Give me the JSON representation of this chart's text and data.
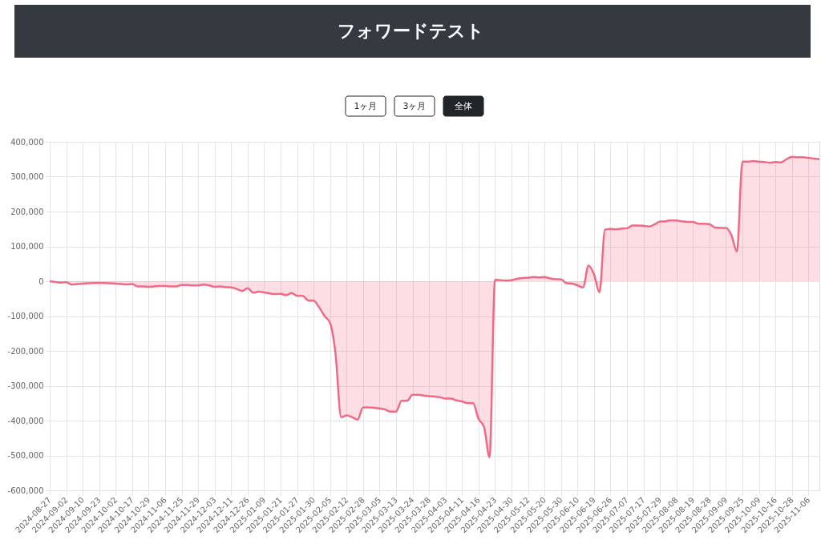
{
  "chart_data": {
    "type": "area",
    "title": "フォワードテスト",
    "annotations": [
      "1ヶ月",
      "3ヶ月",
      "全体"
    ],
    "categories": [
      "2024-08-27",
      null,
      null,
      "2024-09-02",
      null,
      null,
      "2024-09-10",
      null,
      null,
      "2024-09-23",
      null,
      null,
      "2024-10-02",
      null,
      null,
      "2024-10-17",
      null,
      null,
      "2024-10-29",
      null,
      null,
      "2024-11-06",
      null,
      null,
      "2024-11-25",
      null,
      null,
      "2024-11-29",
      null,
      null,
      "2024-12-03",
      null,
      null,
      "2024-12-11",
      null,
      null,
      "2024-12-26",
      null,
      null,
      "2025-01-09",
      null,
      null,
      "2025-01-21",
      null,
      null,
      "2025-01-27",
      null,
      null,
      "2025-01-30",
      null,
      null,
      "2025-02-05",
      null,
      null,
      "2025-02-12",
      null,
      null,
      "2025-02-28",
      null,
      null,
      "2025-03-05",
      null,
      null,
      "2025-03-13",
      null,
      null,
      "2025-03-24",
      null,
      null,
      "2025-03-28",
      null,
      null,
      "2025-04-03",
      null,
      null,
      "2025-04-11",
      null,
      null,
      "2025-04-16",
      null,
      null,
      "2025-04-23",
      null,
      null,
      "2025-04-30",
      null,
      null,
      "2025-05-12",
      null,
      null,
      "2025-05-20",
      null,
      null,
      "2025-05-30",
      null,
      null,
      "2025-06-10",
      null,
      null,
      "2025-06-19",
      null,
      null,
      "2025-06-26",
      null,
      null,
      "2025-07-07",
      null,
      null,
      "2025-07-17",
      null,
      null,
      "2025-07-29",
      null,
      null,
      "2025-08-08",
      null,
      null,
      "2025-08-19",
      null,
      null,
      "2025-08-28",
      null,
      null,
      "2025-09-09",
      null,
      null,
      "2025-09-25",
      null,
      null,
      "2025-10-09",
      null,
      null,
      "2025-10-16",
      null,
      null,
      "2025-10-28",
      null,
      null,
      "2025-11-06",
      null,
      null
    ],
    "series": [
      {
        "color": "#f06a85",
        "values": [
          0,
          -2000,
          -4000,
          -3000,
          -10000,
          -8000,
          -7000,
          -6000,
          -5000,
          -5000,
          -5000,
          -6000,
          -7000,
          -8000,
          -9000,
          -8000,
          -15000,
          -15000,
          -16000,
          -15000,
          -14000,
          -14000,
          -15000,
          -15000,
          -11000,
          -11000,
          -12000,
          -12000,
          -10000,
          -12000,
          -16000,
          -15000,
          -17000,
          -18000,
          -22000,
          -28000,
          -20000,
          -33000,
          -30000,
          -32000,
          -35000,
          -37000,
          -36000,
          -40000,
          -34000,
          -42000,
          -42000,
          -55000,
          -56000,
          -75000,
          -100000,
          -120000,
          -210000,
          -390000,
          -385000,
          -390000,
          -397000,
          -362000,
          -362000,
          -363000,
          -365000,
          -368000,
          -374000,
          -374000,
          -343000,
          -343000,
          -326000,
          -326000,
          -328000,
          -330000,
          -331000,
          -333000,
          -337000,
          -337000,
          -342000,
          -345000,
          -350000,
          -350000,
          -395000,
          -418000,
          -505000,
          4000,
          3000,
          2000,
          3000,
          7000,
          9000,
          10000,
          12000,
          11000,
          12000,
          8000,
          6000,
          5000,
          -6000,
          -7000,
          -12000,
          -18000,
          45000,
          20000,
          -32000,
          148000,
          150000,
          149000,
          151000,
          152000,
          160000,
          160000,
          159000,
          157000,
          163000,
          171000,
          172000,
          175000,
          174000,
          172000,
          170000,
          170000,
          165000,
          165000,
          164000,
          154000,
          153000,
          153000,
          132000,
          85000,
          343000,
          343000,
          345000,
          343000,
          342000,
          340000,
          342000,
          341000,
          350000,
          357000,
          356000,
          356000,
          354000,
          352000,
          350000
        ]
      }
    ],
    "ylim": [
      -600000,
      400000
    ],
    "yticks": [
      {
        "value": -600000,
        "label": "-600,000"
      },
      {
        "value": -500000,
        "label": "-500,000"
      },
      {
        "value": -400000,
        "label": "-400,000"
      },
      {
        "value": -300000,
        "label": "-300,000"
      },
      {
        "value": -200000,
        "label": "-200,000"
      },
      {
        "value": -100000,
        "label": "-100,000"
      },
      0,
      {
        "value": 100000,
        "label": "100,000"
      },
      {
        "value": 200000,
        "label": "200,000"
      },
      {
        "value": 300000,
        "label": "300,000"
      },
      {
        "value": 400000,
        "label": "400,000"
      }
    ],
    "grid": true
  }
}
